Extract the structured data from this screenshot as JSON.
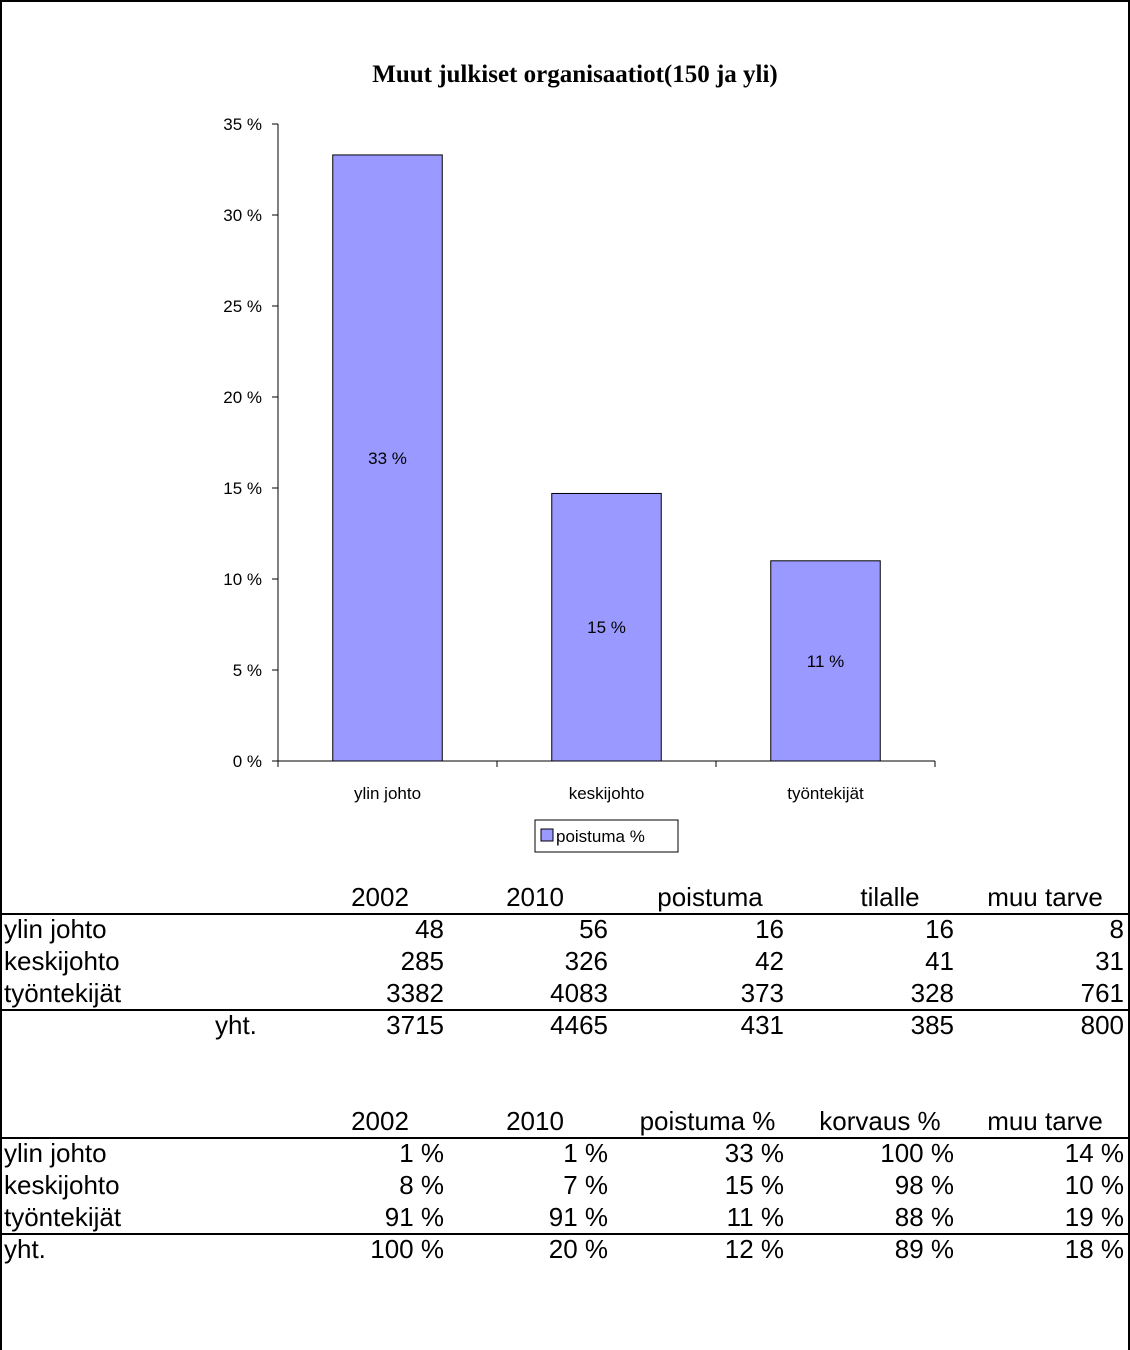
{
  "chart_data": {
    "type": "bar",
    "title": "Muut julkiset organisaatiot(150 ja yli)",
    "categories": [
      "ylin johto",
      "keskijohto",
      "työntekijät"
    ],
    "series": [
      {
        "name": "poistuma %",
        "values": [
          33.3,
          14.7,
          11.0
        ],
        "data_labels": [
          "33 %",
          "15 %",
          "11 %"
        ]
      }
    ],
    "ylim": [
      0,
      35
    ],
    "yticks": [
      "0 %",
      "5 %",
      "10 %",
      "15 %",
      "20 %",
      "25 %",
      "30 %",
      "35 %"
    ],
    "bar_color": "#9999FF",
    "legend": "bottom"
  },
  "table1": {
    "columns": [
      "2002",
      "2010",
      "poistuma",
      "tilalle",
      "muu tarve"
    ],
    "rows": [
      {
        "label": "ylin johto",
        "values": [
          "48",
          "56",
          "16",
          "16",
          "8"
        ]
      },
      {
        "label": "keskijohto",
        "values": [
          "285",
          "326",
          "42",
          "41",
          "31"
        ]
      },
      {
        "label": "työntekijät",
        "values": [
          "3382",
          "4083",
          "373",
          "328",
          "761"
        ]
      }
    ],
    "total": {
      "label": "yht.",
      "values": [
        "3715",
        "4465",
        "431",
        "385",
        "800"
      ]
    }
  },
  "table2": {
    "columns": [
      "2002",
      "2010",
      "poistuma %",
      "korvaus %",
      "muu tarve"
    ],
    "rows": [
      {
        "label": "ylin johto",
        "values": [
          "1 %",
          "1 %",
          "33 %",
          "100 %",
          "14 %"
        ]
      },
      {
        "label": "keskijohto",
        "values": [
          "8 %",
          "7 %",
          "15 %",
          "98 %",
          "10 %"
        ]
      },
      {
        "label": "työntekijät",
        "values": [
          "91 %",
          "91 %",
          "11 %",
          "88 %",
          "19 %"
        ]
      }
    ],
    "total": {
      "label": "yht.",
      "values": [
        "100 %",
        "20 %",
        "12 %",
        "89 %",
        "18 %"
      ]
    }
  }
}
